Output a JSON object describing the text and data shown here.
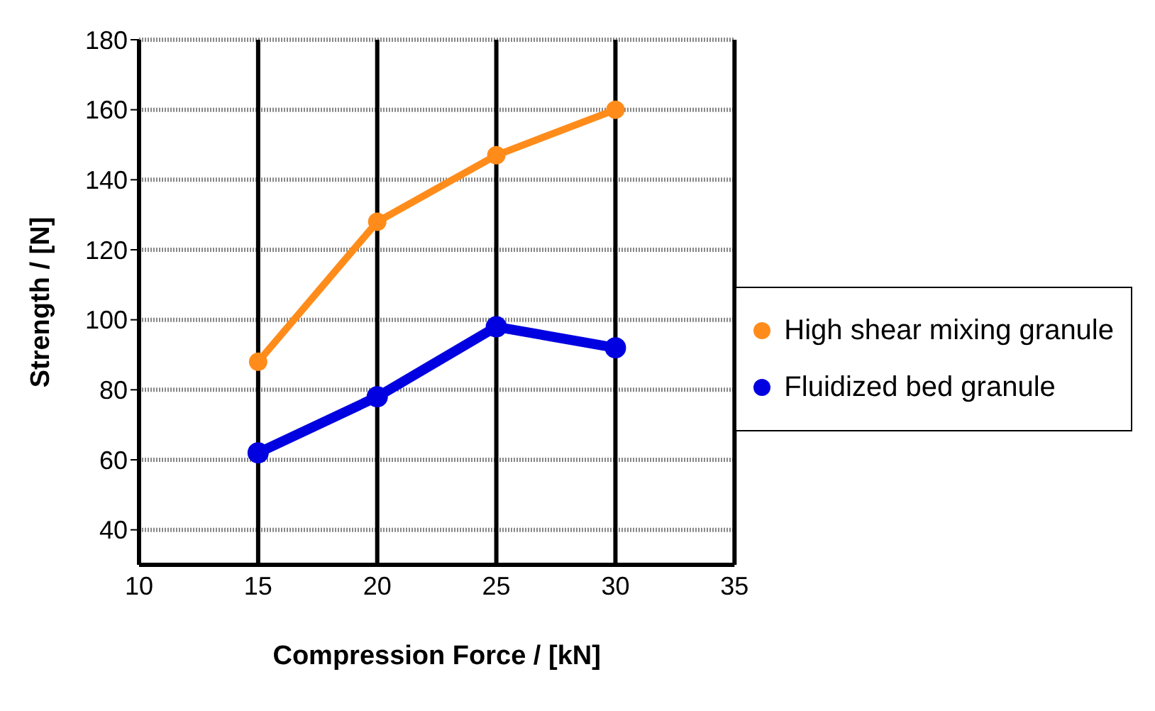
{
  "chart_data": {
    "type": "line",
    "xlabel": "Compression Force / [kN]",
    "ylabel": "Strength / [N]",
    "x": [
      15,
      20,
      25,
      30
    ],
    "series": [
      {
        "name": "High shear mixing granule",
        "color": "#ff8c1a",
        "values": [
          88,
          128,
          147,
          160
        ]
      },
      {
        "name": "Fluidized bed granule",
        "color": "#0000e0",
        "values": [
          62,
          78,
          98,
          92
        ]
      }
    ],
    "xlim": [
      10,
      35
    ],
    "xticks": [
      10,
      15,
      20,
      25,
      30,
      35
    ],
    "ylim": [
      30,
      180
    ],
    "yticks": [
      40,
      60,
      80,
      100,
      120,
      140,
      160,
      180
    ],
    "grid": true,
    "legend": "right",
    "marker": "circle",
    "line_style": "solid"
  }
}
